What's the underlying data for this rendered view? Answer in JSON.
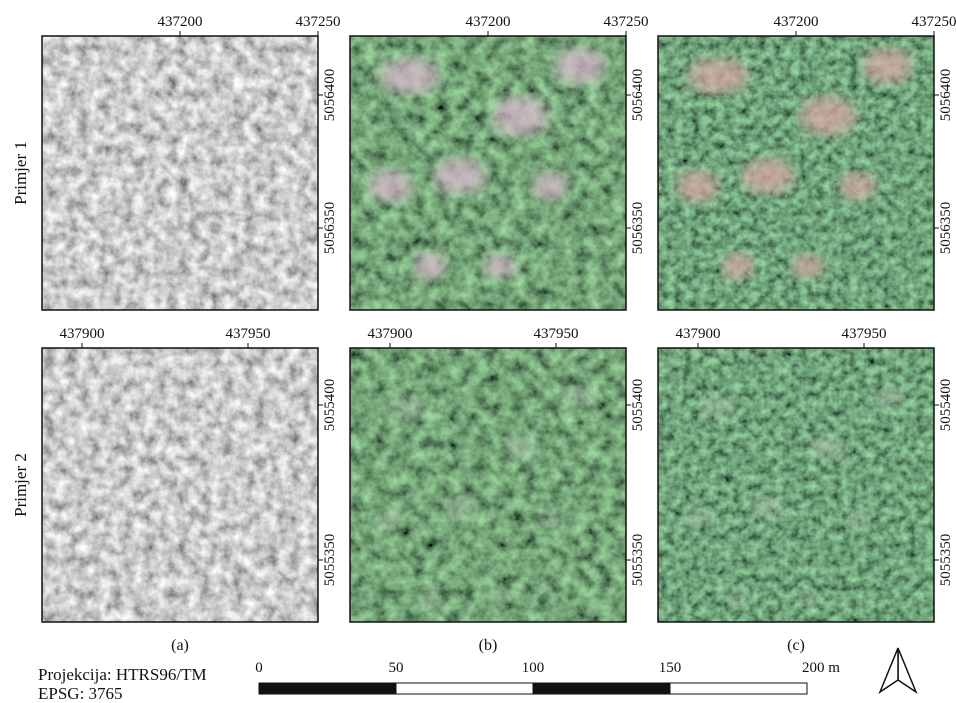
{
  "rows": [
    {
      "label": "Primjer 1",
      "x_ticks": [
        "437200",
        "437250"
      ],
      "y_ticks": [
        "5056400",
        "5056350"
      ]
    },
    {
      "label": "Primjer 2",
      "x_ticks": [
        "437900",
        "437950"
      ],
      "y_ticks": [
        "5055400",
        "5055350"
      ]
    }
  ],
  "panels": [
    "(a)",
    "(b)",
    "(c)"
  ],
  "projection": [
    "Projekcija: HTRS96/TM",
    "EPSG: 3765"
  ],
  "scale_bar": {
    "labels": [
      "0",
      "50",
      "100",
      "150",
      "200 m"
    ]
  }
}
